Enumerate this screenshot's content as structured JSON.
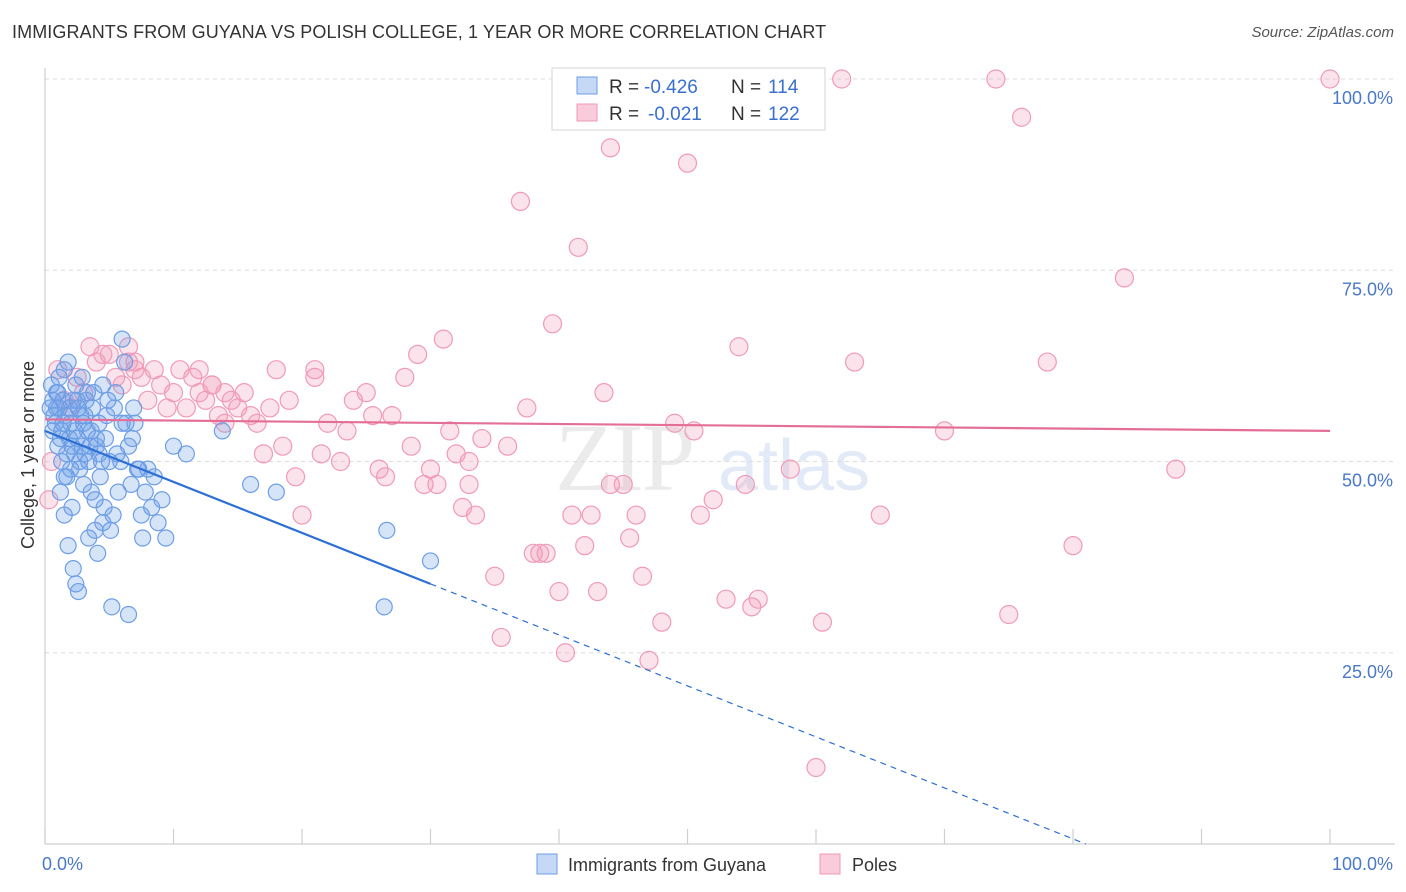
{
  "chart_data": {
    "type": "scatter",
    "title": "IMMIGRANTS FROM GUYANA VS POLISH COLLEGE, 1 YEAR OR MORE CORRELATION CHART",
    "source": "Source: ZipAtlas.com",
    "xlabel": "",
    "ylabel": "College, 1 year or more",
    "xlim": [
      0,
      100
    ],
    "ylim": [
      0,
      100
    ],
    "x_tick_labels": [
      "0.0%",
      "100.0%"
    ],
    "y_ticks": [
      25,
      50,
      75,
      100
    ],
    "y_tick_labels": [
      "25.0%",
      "50.0%",
      "75.0%",
      "100.0%"
    ],
    "grid": true,
    "legend_position": "bottom",
    "watermark": "ZIPatlas",
    "colors": {
      "guyana": "#6d9ee6",
      "poles": "#f09ab7",
      "guyana_line": "#2e6fd4",
      "poles_line": "#e46f96"
    },
    "stats": [
      {
        "r_label": "R =",
        "r_value": "-0.426",
        "n_label": "N =",
        "n_value": "114"
      },
      {
        "r_label": "R =",
        "r_value": "-0.021",
        "n_label": "N =",
        "n_value": "122"
      }
    ],
    "series": [
      {
        "name": "Immigrants from Guyana",
        "trend": {
          "x1": 0,
          "y1": 54,
          "x2": 30,
          "y2": 34,
          "dash_x2": 81,
          "dash_y2": 0
        },
        "points": [
          [
            0.5,
            60
          ],
          [
            0.6,
            58
          ],
          [
            0.7,
            56
          ],
          [
            0.8,
            55
          ],
          [
            0.9,
            57
          ],
          [
            1.0,
            52
          ],
          [
            1.0,
            59
          ],
          [
            1.1,
            61
          ],
          [
            1.2,
            53
          ],
          [
            1.3,
            54
          ],
          [
            1.4,
            58
          ],
          [
            1.5,
            62
          ],
          [
            1.5,
            48
          ],
          [
            1.6,
            56
          ],
          [
            1.7,
            51
          ],
          [
            1.8,
            63
          ],
          [
            1.9,
            57
          ],
          [
            2.0,
            55
          ],
          [
            2.0,
            49
          ],
          [
            2.1,
            52
          ],
          [
            2.2,
            58
          ],
          [
            2.3,
            54
          ],
          [
            2.4,
            60
          ],
          [
            2.5,
            53
          ],
          [
            2.6,
            57
          ],
          [
            2.7,
            50
          ],
          [
            2.8,
            56
          ],
          [
            2.9,
            52
          ],
          [
            3.0,
            55
          ],
          [
            3.1,
            51
          ],
          [
            3.2,
            58
          ],
          [
            3.3,
            54
          ],
          [
            3.4,
            50
          ],
          [
            3.5,
            52
          ],
          [
            3.6,
            46
          ],
          [
            3.8,
            59
          ],
          [
            3.9,
            45
          ],
          [
            4.0,
            53
          ],
          [
            4.2,
            51
          ],
          [
            4.3,
            48
          ],
          [
            4.5,
            60
          ],
          [
            4.6,
            44
          ],
          [
            4.8,
            56
          ],
          [
            5.0,
            50
          ],
          [
            5.1,
            41
          ],
          [
            5.3,
            43
          ],
          [
            5.5,
            59
          ],
          [
            5.7,
            46
          ],
          [
            5.9,
            50
          ],
          [
            6.0,
            55
          ],
          [
            6.2,
            63
          ],
          [
            6.5,
            52
          ],
          [
            6.7,
            47
          ],
          [
            6.9,
            57
          ],
          [
            7.0,
            55
          ],
          [
            7.3,
            49
          ],
          [
            7.5,
            43
          ],
          [
            7.6,
            40
          ],
          [
            7.8,
            46
          ],
          [
            8.0,
            49
          ],
          [
            8.3,
            44
          ],
          [
            8.5,
            48
          ],
          [
            8.8,
            42
          ],
          [
            9.1,
            45
          ],
          [
            9.4,
            40
          ],
          [
            10.0,
            52
          ],
          [
            11.0,
            51
          ],
          [
            13.8,
            54
          ],
          [
            16.0,
            47
          ],
          [
            18.0,
            46
          ],
          [
            26.4,
            31
          ],
          [
            26.6,
            41
          ],
          [
            30.0,
            37
          ],
          [
            1.2,
            46
          ],
          [
            1.5,
            43
          ],
          [
            1.8,
            39
          ],
          [
            2.2,
            36
          ],
          [
            2.4,
            34
          ],
          [
            2.6,
            33
          ],
          [
            3.0,
            47
          ],
          [
            3.4,
            40
          ],
          [
            3.9,
            41
          ],
          [
            4.1,
            38
          ],
          [
            4.5,
            42
          ],
          [
            5.2,
            31
          ],
          [
            6.5,
            30
          ],
          [
            1.1,
            57
          ],
          [
            1.4,
            55
          ],
          [
            1.9,
            53
          ],
          [
            2.3,
            51
          ],
          [
            2.7,
            49
          ],
          [
            3.1,
            56
          ],
          [
            3.6,
            54
          ],
          [
            4.0,
            52
          ],
          [
            4.4,
            50
          ],
          [
            4.9,
            58
          ],
          [
            5.4,
            57
          ],
          [
            6.0,
            66
          ],
          [
            6.3,
            55
          ],
          [
            6.8,
            53
          ],
          [
            0.4,
            57
          ],
          [
            0.6,
            54
          ],
          [
            0.9,
            59
          ],
          [
            1.3,
            50
          ],
          [
            1.7,
            48
          ],
          [
            2.1,
            44
          ],
          [
            2.5,
            58
          ],
          [
            2.9,
            61
          ],
          [
            3.3,
            59
          ],
          [
            3.7,
            57
          ],
          [
            4.2,
            55
          ],
          [
            4.7,
            53
          ],
          [
            5.6,
            51
          ],
          [
            7.2,
            49
          ]
        ]
      },
      {
        "name": "Poles",
        "trend": {
          "x1": 0,
          "y1": 55.5,
          "x2": 100,
          "y2": 54
        },
        "points": [
          [
            0.3,
            45
          ],
          [
            0.5,
            50
          ],
          [
            1.0,
            62
          ],
          [
            1.5,
            58
          ],
          [
            2.0,
            57
          ],
          [
            2.5,
            61
          ],
          [
            3.0,
            59
          ],
          [
            3.5,
            65
          ],
          [
            4.0,
            63
          ],
          [
            4.5,
            64
          ],
          [
            5.0,
            64
          ],
          [
            5.5,
            61
          ],
          [
            6.0,
            60
          ],
          [
            6.5,
            63
          ],
          [
            7.0,
            62
          ],
          [
            7.5,
            61
          ],
          [
            8.0,
            58
          ],
          [
            8.5,
            62
          ],
          [
            9.0,
            60
          ],
          [
            9.5,
            57
          ],
          [
            10.0,
            59
          ],
          [
            10.5,
            62
          ],
          [
            11.0,
            57
          ],
          [
            11.5,
            61
          ],
          [
            12.0,
            59
          ],
          [
            12.5,
            58
          ],
          [
            13.0,
            60
          ],
          [
            13.5,
            56
          ],
          [
            14.0,
            55
          ],
          [
            14.5,
            58
          ],
          [
            15.0,
            57
          ],
          [
            15.5,
            59
          ],
          [
            16.0,
            56
          ],
          [
            16.5,
            55
          ],
          [
            17.0,
            51
          ],
          [
            17.5,
            57
          ],
          [
            18.0,
            62
          ],
          [
            18.5,
            52
          ],
          [
            19.0,
            58
          ],
          [
            19.5,
            48
          ],
          [
            20.0,
            43
          ],
          [
            21.0,
            62
          ],
          [
            21.5,
            51
          ],
          [
            22.0,
            55
          ],
          [
            23.0,
            50
          ],
          [
            23.5,
            54
          ],
          [
            24.0,
            58
          ],
          [
            25.0,
            59
          ],
          [
            25.5,
            56
          ],
          [
            26.0,
            49
          ],
          [
            26.5,
            48
          ],
          [
            27.0,
            56
          ],
          [
            28.0,
            61
          ],
          [
            28.5,
            52
          ],
          [
            29.0,
            64
          ],
          [
            29.5,
            47
          ],
          [
            30.0,
            49
          ],
          [
            30.5,
            47
          ],
          [
            31.0,
            66
          ],
          [
            31.5,
            54
          ],
          [
            32.0,
            51
          ],
          [
            32.5,
            44
          ],
          [
            33.0,
            47
          ],
          [
            33.5,
            43
          ],
          [
            34.0,
            53
          ],
          [
            35.0,
            35
          ],
          [
            35.5,
            27
          ],
          [
            36.0,
            52
          ],
          [
            37.0,
            84
          ],
          [
            37.5,
            57
          ],
          [
            38.0,
            38
          ],
          [
            38.5,
            38
          ],
          [
            39.0,
            38
          ],
          [
            39.5,
            68
          ],
          [
            40.0,
            33
          ],
          [
            40.5,
            25
          ],
          [
            41.0,
            43
          ],
          [
            41.5,
            78
          ],
          [
            42.0,
            39
          ],
          [
            42.5,
            43
          ],
          [
            43.0,
            33
          ],
          [
            43.5,
            59
          ],
          [
            44.0,
            91
          ],
          [
            45.0,
            47
          ],
          [
            45.5,
            40
          ],
          [
            46.0,
            43
          ],
          [
            46.5,
            35
          ],
          [
            47.0,
            24
          ],
          [
            48.0,
            29
          ],
          [
            49.0,
            55
          ],
          [
            50.0,
            89
          ],
          [
            50.5,
            54
          ],
          [
            51.0,
            43
          ],
          [
            52.0,
            45
          ],
          [
            53.0,
            32
          ],
          [
            54.0,
            65
          ],
          [
            54.5,
            47
          ],
          [
            55.0,
            31
          ],
          [
            55.5,
            32
          ],
          [
            58.0,
            49
          ],
          [
            60.0,
            10
          ],
          [
            60.5,
            29
          ],
          [
            62.0,
            100
          ],
          [
            63.0,
            63
          ],
          [
            65.0,
            43
          ],
          [
            70.0,
            54
          ],
          [
            74.0,
            100
          ],
          [
            75.0,
            30
          ],
          [
            76.0,
            95
          ],
          [
            78.0,
            63
          ],
          [
            80.0,
            39
          ],
          [
            84.0,
            74
          ],
          [
            88.0,
            49
          ],
          [
            100.0,
            100
          ],
          [
            6.5,
            65
          ],
          [
            7.0,
            63
          ],
          [
            12.0,
            62
          ],
          [
            13.0,
            60
          ],
          [
            14.0,
            59
          ],
          [
            21.0,
            61
          ],
          [
            33.0,
            50
          ],
          [
            44.0,
            47
          ]
        ]
      }
    ]
  }
}
